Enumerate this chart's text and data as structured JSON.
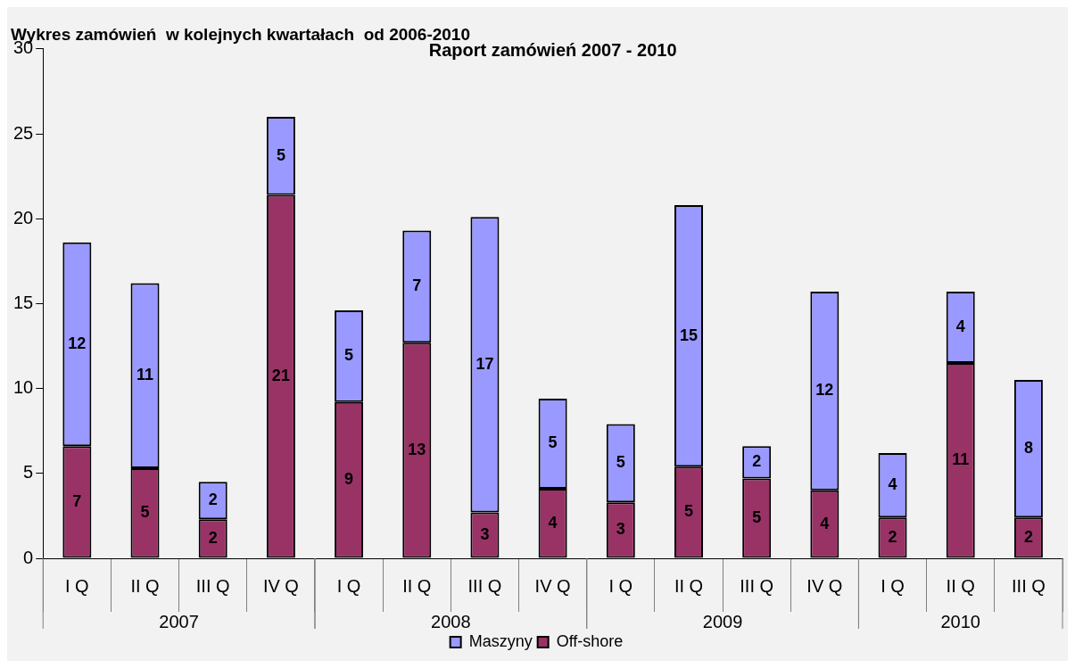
{
  "chart_data": {
    "type": "bar",
    "title": "Wykres zamówień  w kolejnych kwartałach  od 2006-2010",
    "subtitle": "Raport zamówień 2007 - 2010",
    "categories": [
      "I Q",
      "II Q",
      "III Q",
      "IV Q",
      "I Q",
      "II Q",
      "III Q",
      "IV Q",
      "I Q",
      "II Q",
      "III Q",
      "IV Q",
      "I Q",
      "II Q",
      "III Q"
    ],
    "annotations": [
      "2007",
      "2008",
      "2009",
      "2010"
    ],
    "stacked": true,
    "legend": "bottom",
    "ylim": [
      0,
      30
    ],
    "yticks": [
      0,
      5,
      10,
      15,
      20,
      25,
      30
    ],
    "series": [
      {
        "name": "Off-shore",
        "color": "#993366",
        "values": [
          6.6,
          5.3,
          2.3,
          21.4,
          9.2,
          12.7,
          2.7,
          4.1,
          3.3,
          5.4,
          4.7,
          4.0,
          2.4,
          11.5,
          2.4
        ],
        "value_labels": [
          "7",
          "5",
          "2",
          "21",
          "9",
          "13",
          "3",
          "4",
          "3",
          "5",
          "5",
          "4",
          "2",
          "11",
          "2"
        ]
      },
      {
        "name": "Maszyny",
        "color": "#9999ff",
        "values": [
          12.0,
          10.9,
          2.2,
          4.6,
          5.4,
          6.6,
          17.4,
          5.3,
          4.6,
          15.4,
          1.9,
          11.7,
          3.8,
          4.2,
          8.1
        ],
        "value_labels": [
          "12",
          "11",
          "2",
          "5",
          "5",
          "7",
          "17",
          "5",
          "5",
          "15",
          "2",
          "12",
          "4",
          "4",
          "8"
        ]
      }
    ]
  }
}
